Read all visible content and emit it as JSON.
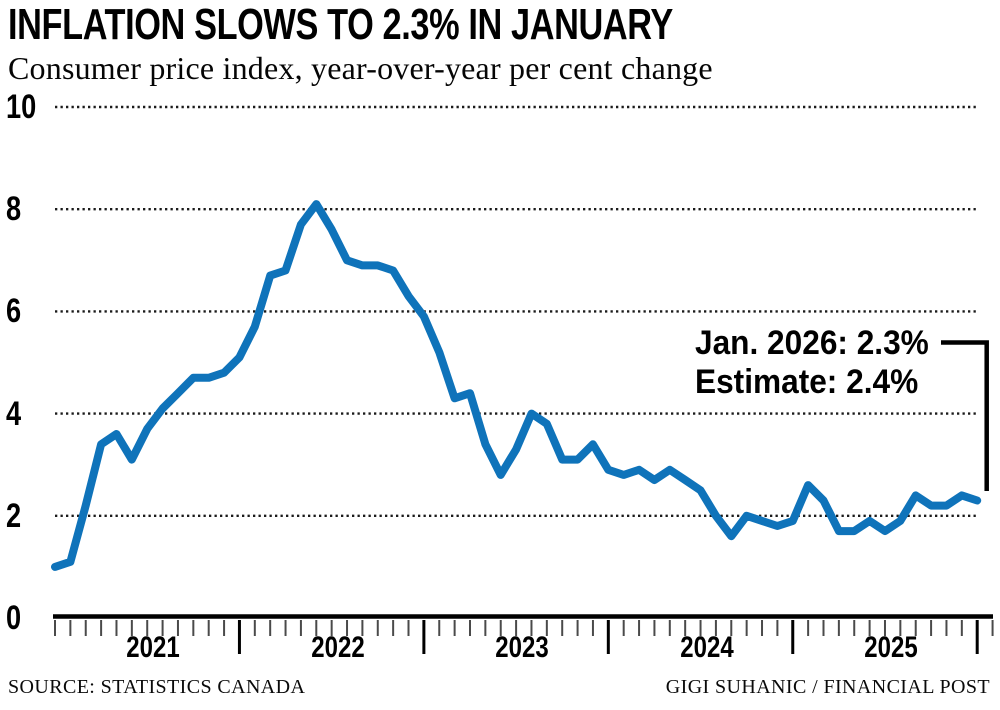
{
  "header": {
    "title": "INFLATION SLOWS TO 2.3% IN JANUARY",
    "subtitle": "Consumer price index, year-over-year per cent change"
  },
  "annotation": {
    "line1": "Jan. 2026: 2.3%",
    "line2": "Estimate: 2.4%"
  },
  "footer": {
    "source": "SOURCE: STATISTICS CANADA",
    "credit": "GIGI SUHANIC / FINANCIAL POST"
  },
  "colors": {
    "line": "#0f73ba",
    "grid_dots": "#1a1a1a",
    "axis": "#000000",
    "minor_tick": "#4a4a4a",
    "major_tick": "#000000"
  },
  "chart_data": {
    "type": "line",
    "title": "INFLATION SLOWS TO 2.3% IN JANUARY",
    "subtitle": "Consumer price index, year-over-year per cent change",
    "ylabel": "per cent change, year-over-year",
    "ylim": [
      0,
      10
    ],
    "y_ticks": [
      0,
      2,
      4,
      6,
      8,
      10
    ],
    "grid": "horizontal dotted",
    "legend_position": "none",
    "x_year_labels": [
      "2021",
      "2022",
      "2023",
      "2024",
      "2025"
    ],
    "x_minor_tick_unit": "month",
    "series": [
      {
        "name": "Consumer price index, year-over-year per cent change",
        "start_month": "2021-01",
        "end_month": "2026-01",
        "values": [
          1.0,
          1.1,
          2.2,
          3.4,
          3.6,
          3.1,
          3.7,
          4.1,
          4.4,
          4.7,
          4.7,
          4.8,
          5.1,
          5.7,
          6.7,
          6.8,
          7.7,
          8.1,
          7.6,
          7.0,
          6.9,
          6.9,
          6.8,
          6.3,
          5.9,
          5.2,
          4.3,
          4.4,
          3.4,
          2.8,
          3.3,
          4.0,
          3.8,
          3.1,
          3.1,
          3.4,
          2.9,
          2.8,
          2.9,
          2.7,
          2.9,
          2.7,
          2.5,
          2.0,
          1.6,
          2.0,
          1.9,
          1.8,
          1.9,
          2.6,
          2.3,
          1.7,
          1.7,
          1.9,
          1.7,
          1.9,
          2.4,
          2.2,
          2.2,
          2.4,
          2.3
        ]
      }
    ],
    "annotation": {
      "text_line1": "Jan. 2026: 2.3%",
      "text_line2": "Estimate: 2.4%",
      "points_to": {
        "month": "2026-01",
        "value": 2.3
      }
    }
  }
}
